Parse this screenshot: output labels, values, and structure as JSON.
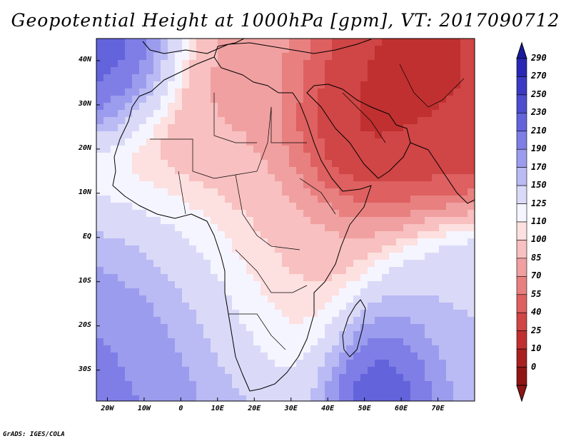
{
  "title": "Geopotential Height at 1000hPa [gpm], VT: 2017090712",
  "credit": "GrADS: IGES/COLA",
  "lat_labels": [
    "40N",
    "30N",
    "20N",
    "10N",
    "EQ",
    "10S",
    "20S",
    "30S"
  ],
  "lon_labels": [
    "20W",
    "10W",
    "0",
    "10E",
    "20E",
    "30E",
    "40E",
    "50E",
    "60E",
    "70E"
  ],
  "colorbar": {
    "levels": [
      "290",
      "270",
      "250",
      "230",
      "210",
      "190",
      "170",
      "150",
      "125",
      "110",
      "100",
      "85",
      "70",
      "55",
      "40",
      "25",
      "10",
      "0"
    ],
    "colors": [
      "#1a1aa0",
      "#2828b4",
      "#3a3ac4",
      "#4d4dd0",
      "#6363dc",
      "#7e7ee6",
      "#9c9cee",
      "#babaf4",
      "#dadaf8",
      "#f5f5ff",
      "#fde0e0",
      "#f8c0c0",
      "#f0a0a0",
      "#e88080",
      "#de6060",
      "#d04545",
      "#c03030",
      "#a82020",
      "#901515"
    ]
  },
  "map_extent": {
    "lon": [
      -23,
      80
    ],
    "lat": [
      -37,
      45
    ]
  },
  "field_blobs": [
    {
      "lon": 45,
      "lat": 22,
      "value": 5,
      "spread": 9
    },
    {
      "lon": 55,
      "lat": 34,
      "value": 10,
      "spread": 12
    },
    {
      "lon": 70,
      "lat": 30,
      "value": 25,
      "spread": 14
    },
    {
      "lon": 20,
      "lat": 15,
      "value": 80,
      "spread": 25
    },
    {
      "lon": 25,
      "lat": -12,
      "value": 85,
      "spread": 14
    },
    {
      "lon": -20,
      "lat": 42,
      "value": 240,
      "spread": 10
    },
    {
      "lon": -15,
      "lat": -28,
      "value": 210,
      "spread": 16
    },
    {
      "lon": 55,
      "lat": -32,
      "value": 250,
      "spread": 10
    },
    {
      "lon": 5,
      "lat": -22,
      "value": 170,
      "spread": 20
    },
    {
      "lon": 75,
      "lat": -20,
      "value": 150,
      "spread": 14
    }
  ]
}
